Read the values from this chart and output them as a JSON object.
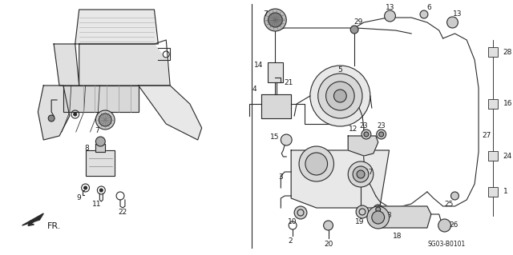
{
  "background_color": "#ffffff",
  "line_color": "#2a2a2a",
  "text_color": "#1a1a1a",
  "diagram_code": "SG03-B0101",
  "font_size_labels": 6.5,
  "font_size_code": 5.5,
  "figsize": [
    6.4,
    3.19
  ],
  "dpi": 100
}
